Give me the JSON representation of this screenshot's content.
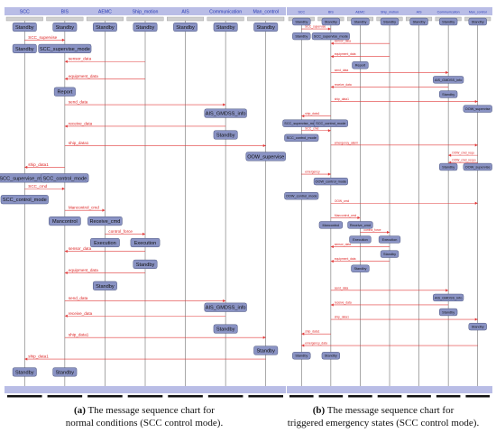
{
  "panel_a": {
    "caption_label": "(a)",
    "caption_line1": "The message sequence chart for",
    "caption_line2": "normal conditions (SCC control mode).",
    "lifelines": [
      "SCC",
      "BIS",
      "AEMC",
      "Ship_motion",
      "AIS",
      "Communication",
      "Man_control"
    ],
    "states": [
      {
        "lane": 0,
        "text": "Standby",
        "row": 0
      },
      {
        "lane": 1,
        "text": "Standby",
        "row": 0
      },
      {
        "lane": 2,
        "text": "Standby",
        "row": 0
      },
      {
        "lane": 3,
        "text": "Standby",
        "row": 0
      },
      {
        "lane": 4,
        "text": "Standby",
        "row": 0
      },
      {
        "lane": 5,
        "text": "Standby",
        "row": 0
      },
      {
        "lane": 6,
        "text": "Standby",
        "row": 0
      },
      {
        "lane": 0,
        "text": "Standby",
        "row": 1
      },
      {
        "lane": 1,
        "text": "SCC_supervise_mode",
        "row": 1
      },
      {
        "lane": 1,
        "text": "Report",
        "row": 3
      },
      {
        "lane": 5,
        "text": "AIS_GMDSS_info",
        "row": 4
      },
      {
        "lane": 5,
        "text": "Standby",
        "row": 5
      },
      {
        "lane": 6,
        "text": "OOW_supervise",
        "row": 6
      },
      {
        "lane": 0,
        "text": "SCC_supervise_mode",
        "row": 7
      },
      {
        "lane": 1,
        "text": "SCC_control_mode",
        "row": 7
      },
      {
        "lane": 0,
        "text": "SCC_control_mode",
        "row": 8
      },
      {
        "lane": 1,
        "text": "Mancontrol",
        "row": 9
      },
      {
        "lane": 2,
        "text": "Receive_cmd",
        "row": 9
      },
      {
        "lane": 2,
        "text": "Execution",
        "row": 10
      },
      {
        "lane": 3,
        "text": "Execution",
        "row": 10
      },
      {
        "lane": 3,
        "text": "Standby",
        "row": 11
      },
      {
        "lane": 2,
        "text": "Standby",
        "row": 12
      },
      {
        "lane": 5,
        "text": "AIS_GMDSS_info",
        "row": 13
      },
      {
        "lane": 5,
        "text": "Standby",
        "row": 14
      },
      {
        "lane": 6,
        "text": "Standby",
        "row": 15
      },
      {
        "lane": 0,
        "text": "Standby",
        "row": 16
      },
      {
        "lane": 1,
        "text": "Standby",
        "row": 16
      }
    ],
    "messages": [
      {
        "from": 0,
        "to": 1,
        "text": "SCC_supervise",
        "row": 0.6
      },
      {
        "from": 3,
        "to": 1,
        "text": "sensor_data",
        "row": 1.6
      },
      {
        "from": 3,
        "to": 1,
        "text": "equipment_data",
        "row": 2.4
      },
      {
        "from": 1,
        "to": 5,
        "text": "send_data",
        "row": 3.6
      },
      {
        "from": 5,
        "to": 1,
        "text": "receive_data",
        "row": 4.6
      },
      {
        "from": 1,
        "to": 6,
        "text": "ship_data1",
        "row": 5.5
      },
      {
        "from": 1,
        "to": 0,
        "text": "ship_data1",
        "row": 6.5
      },
      {
        "from": 0,
        "to": 1,
        "text": "SCC_cmd",
        "row": 7.5
      },
      {
        "from": 1,
        "to": 2,
        "text": "Mancontrol_cmd",
        "row": 8.5
      },
      {
        "from": 2,
        "to": 3,
        "text": "control_force",
        "row": 9.6
      },
      {
        "from": 3,
        "to": 1,
        "text": "sensor_data",
        "row": 10.4
      },
      {
        "from": 3,
        "to": 1,
        "text": "equipment_data",
        "row": 11.4
      },
      {
        "from": 1,
        "to": 5,
        "text": "send_data",
        "row": 12.7
      },
      {
        "from": 5,
        "to": 1,
        "text": "receive_data",
        "row": 13.4
      },
      {
        "from": 1,
        "to": 6,
        "text": "ship_data1",
        "row": 14.4
      },
      {
        "from": 6,
        "to": 0,
        "text": "ship_data1",
        "row": 15.4
      }
    ]
  },
  "panel_b": {
    "caption_label": "(b)",
    "caption_line1": "The message sequence chart for",
    "caption_line2": "triggered emergency states (SCC control mode).",
    "lifelines": [
      "SCC",
      "BIS",
      "AEMC",
      "Ship_motion",
      "AIS",
      "Communication",
      "Man_control"
    ],
    "states": [
      {
        "lane": 0,
        "text": "Standby",
        "row": 0
      },
      {
        "lane": 1,
        "text": "Standby",
        "row": 0
      },
      {
        "lane": 2,
        "text": "Standby",
        "row": 0
      },
      {
        "lane": 3,
        "text": "Standby",
        "row": 0
      },
      {
        "lane": 4,
        "text": "Standby",
        "row": 0
      },
      {
        "lane": 5,
        "text": "Standby",
        "row": 0
      },
      {
        "lane": 6,
        "text": "Standby",
        "row": 0
      },
      {
        "lane": 0,
        "text": "Standby",
        "row": 1
      },
      {
        "lane": 1,
        "text": "SCC_supervise_mode",
        "row": 1
      },
      {
        "lane": 2,
        "text": "Report",
        "row": 3
      },
      {
        "lane": 5,
        "text": "AIS_GMDSS_info",
        "row": 4
      },
      {
        "lane": 5,
        "text": "Standby",
        "row": 5
      },
      {
        "lane": 6,
        "text": "OOW_supervise",
        "row": 6
      },
      {
        "lane": 0,
        "text": "SCC_supervise_mode",
        "row": 7
      },
      {
        "lane": 1,
        "text": "SCC_control_mode",
        "row": 7
      },
      {
        "lane": 0,
        "text": "SCC_control_mode",
        "row": 8
      },
      {
        "lane": 5,
        "text": "Standby",
        "row": 10
      },
      {
        "lane": 6,
        "text": "OOW_supervise",
        "row": 10
      },
      {
        "lane": 1,
        "text": "OOW_control_mode",
        "row": 11
      },
      {
        "lane": 0,
        "text": "OOW_control_mode",
        "row": 12
      },
      {
        "lane": 1,
        "text": "Mancontrol",
        "row": 14
      },
      {
        "lane": 2,
        "text": "Receive_cmd",
        "row": 14
      },
      {
        "lane": 2,
        "text": "Execution",
        "row": 15
      },
      {
        "lane": 3,
        "text": "Execution",
        "row": 15
      },
      {
        "lane": 3,
        "text": "Standby",
        "row": 16
      },
      {
        "lane": 2,
        "text": "Standby",
        "row": 17
      },
      {
        "lane": 5,
        "text": "AIS_GMDSS_info",
        "row": 19
      },
      {
        "lane": 5,
        "text": "Standby",
        "row": 20
      },
      {
        "lane": 6,
        "text": "Standby",
        "row": 21
      },
      {
        "lane": 0,
        "text": "Standby",
        "row": 23
      },
      {
        "lane": 1,
        "text": "Standby",
        "row": 23
      }
    ],
    "messages": [
      {
        "from": 0,
        "to": 1,
        "text": "SCC_supervise",
        "row": 0.5
      },
      {
        "from": 3,
        "to": 1,
        "text": "sensor_data",
        "row": 1.5
      },
      {
        "from": 3,
        "to": 1,
        "text": "equipment_data",
        "row": 2.4
      },
      {
        "from": 1,
        "to": 5,
        "text": "send_data",
        "row": 3.5
      },
      {
        "from": 5,
        "to": 1,
        "text": "receive_data",
        "row": 4.5
      },
      {
        "from": 1,
        "to": 6,
        "text": "ship_data1",
        "row": 5.5
      },
      {
        "from": 1,
        "to": 0,
        "text": "ship_data1",
        "row": 6.5
      },
      {
        "from": 0,
        "to": 1,
        "text": "SCC_cmd",
        "row": 7.5
      },
      {
        "from": 1,
        "to": 6,
        "text": "emergency_alarm",
        "row": 8.5
      },
      {
        "from": 6,
        "to": 5,
        "text": "OOW_cmd_requ",
        "row": 9.2
      },
      {
        "from": 6,
        "to": 5,
        "text": "OOW_cmd_respo",
        "row": 9.7
      },
      {
        "from": 0,
        "to": 1,
        "text": "emergency",
        "row": 10.5
      },
      {
        "from": 1,
        "to": 6,
        "text": "OOW_cmd",
        "row": 12.5
      },
      {
        "from": 1,
        "to": 2,
        "text": "Mancontrol_cmd",
        "row": 13.5
      },
      {
        "from": 2,
        "to": 3,
        "text": "control_force",
        "row": 14.5
      },
      {
        "from": 3,
        "to": 1,
        "text": "sensor_data",
        "row": 15.5
      },
      {
        "from": 3,
        "to": 1,
        "text": "equipment_data",
        "row": 16.5
      },
      {
        "from": 1,
        "to": 5,
        "text": "send_data",
        "row": 18.5
      },
      {
        "from": 5,
        "to": 1,
        "text": "receive_data",
        "row": 19.5
      },
      {
        "from": 1,
        "to": 6,
        "text": "ship_data1",
        "row": 20.5
      },
      {
        "from": 1,
        "to": 0,
        "text": "ship_data1",
        "row": 21.5
      },
      {
        "from": 6,
        "to": 0,
        "text": "emergency_data",
        "row": 22.3
      }
    ]
  }
}
